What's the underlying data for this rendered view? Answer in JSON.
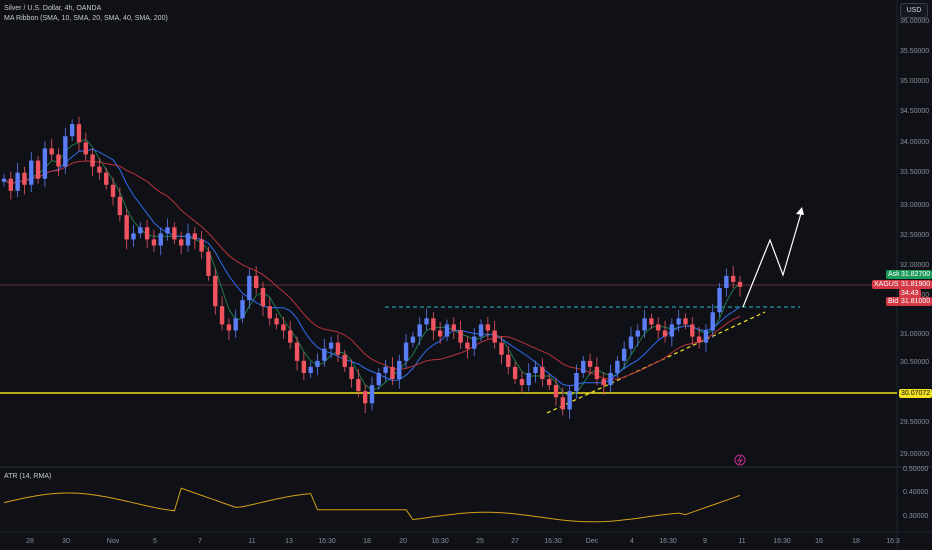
{
  "legend": {
    "symbol_line": "Silver / U.S. Dollar, 4h, OANDA",
    "indicator_line": "MA Ribbon (SMA, 10, SMA, 20, SMA, 40, SMA, 200)"
  },
  "currency_button": "USD",
  "price_axis": {
    "ticks": [
      "36.00000",
      "35.50000",
      "35.00000",
      "34.50000",
      "34.00000",
      "33.50000",
      "33.00000",
      "32.50000",
      "32.00000",
      "31.50000",
      "31.00000",
      "30.50000",
      "30.00000",
      "29.50000",
      "29.00000"
    ]
  },
  "tags": {
    "ask_label": "Ask",
    "ask_value": "31.82700",
    "symbol_label": "XAGUSD",
    "last_value": "31.81900",
    "countdown": "34:43",
    "bid_label": "Bid",
    "bid_value": "31.81000",
    "level_value": "30.07072"
  },
  "atr": {
    "label": "ATR (14, RMA)",
    "ticks": [
      "0.50000",
      "0.40000",
      "0.30000"
    ]
  },
  "time_axis": {
    "labels": [
      "28",
      "30",
      "Nov",
      "5",
      "7",
      "11",
      "13",
      "16:30",
      "18",
      "20",
      "16:30",
      "25",
      "27",
      "16:30",
      "Dec",
      "4",
      "16:30",
      "9",
      "11",
      "16:30",
      "16",
      "18",
      "16:3"
    ]
  },
  "colors": {
    "up": "#5b7df5",
    "down": "#f05461",
    "ma_blue": "#2f6df0",
    "ma_red": "#b8323d",
    "ma_green": "#1f7a4a",
    "level": "#f0e020",
    "dashed_cyan": "#2ab7c9",
    "dashed_yellow": "#f0e020"
  }
}
